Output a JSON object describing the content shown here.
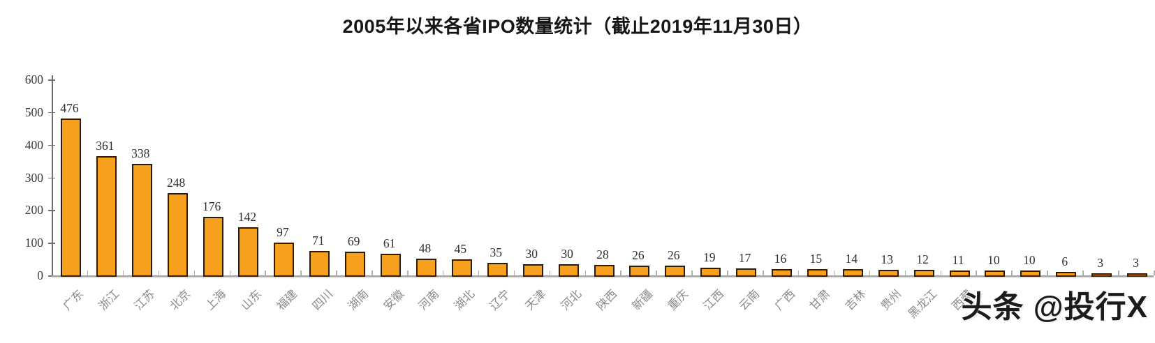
{
  "title": "2005年以来各省IPO数量统计（截止2019年11月30日）",
  "watermark": {
    "text": "头条 @投行X"
  },
  "colors": {
    "bar_fill": "#F6A01D",
    "bar_border": "#2E1D02",
    "axis": "#6F6F6F",
    "x_axis_line": "#A3A3A3",
    "value_label": "#2E2E2E",
    "x_label": "#8B8B8B",
    "title": "#161616",
    "watermark": "#1C1C1C",
    "background": "#FFFFFF"
  },
  "chart_data": {
    "type": "bar",
    "title": "2005年以来各省IPO数量统计（截止2019年11月30日）",
    "categories": [
      "广东",
      "浙江",
      "江苏",
      "北京",
      "上海",
      "山东",
      "福建",
      "四川",
      "湖南",
      "安徽",
      "河南",
      "湖北",
      "辽宁",
      "天津",
      "河北",
      "陕西",
      "新疆",
      "重庆",
      "江西",
      "云南",
      "广西",
      "甘肃",
      "吉林",
      "贵州",
      "黑龙江",
      "西藏",
      "",
      "",
      "",
      "",
      ""
    ],
    "values": [
      476,
      361,
      338,
      248,
      176,
      142,
      97,
      71,
      69,
      61,
      48,
      45,
      35,
      30,
      30,
      28,
      26,
      26,
      19,
      17,
      16,
      15,
      14,
      13,
      12,
      11,
      10,
      10,
      6,
      3,
      3
    ],
    "xlabel": "",
    "ylabel": "",
    "ylim": [
      0,
      600
    ],
    "yticks": [
      0,
      100,
      200,
      300,
      400,
      500,
      600
    ],
    "grid": false,
    "legend": "none",
    "value_labels_shown": true,
    "x_labels_rotation_deg": -45,
    "obscured_category_indices": [
      26,
      27,
      28,
      29,
      30
    ],
    "obscured_by": "watermark"
  }
}
